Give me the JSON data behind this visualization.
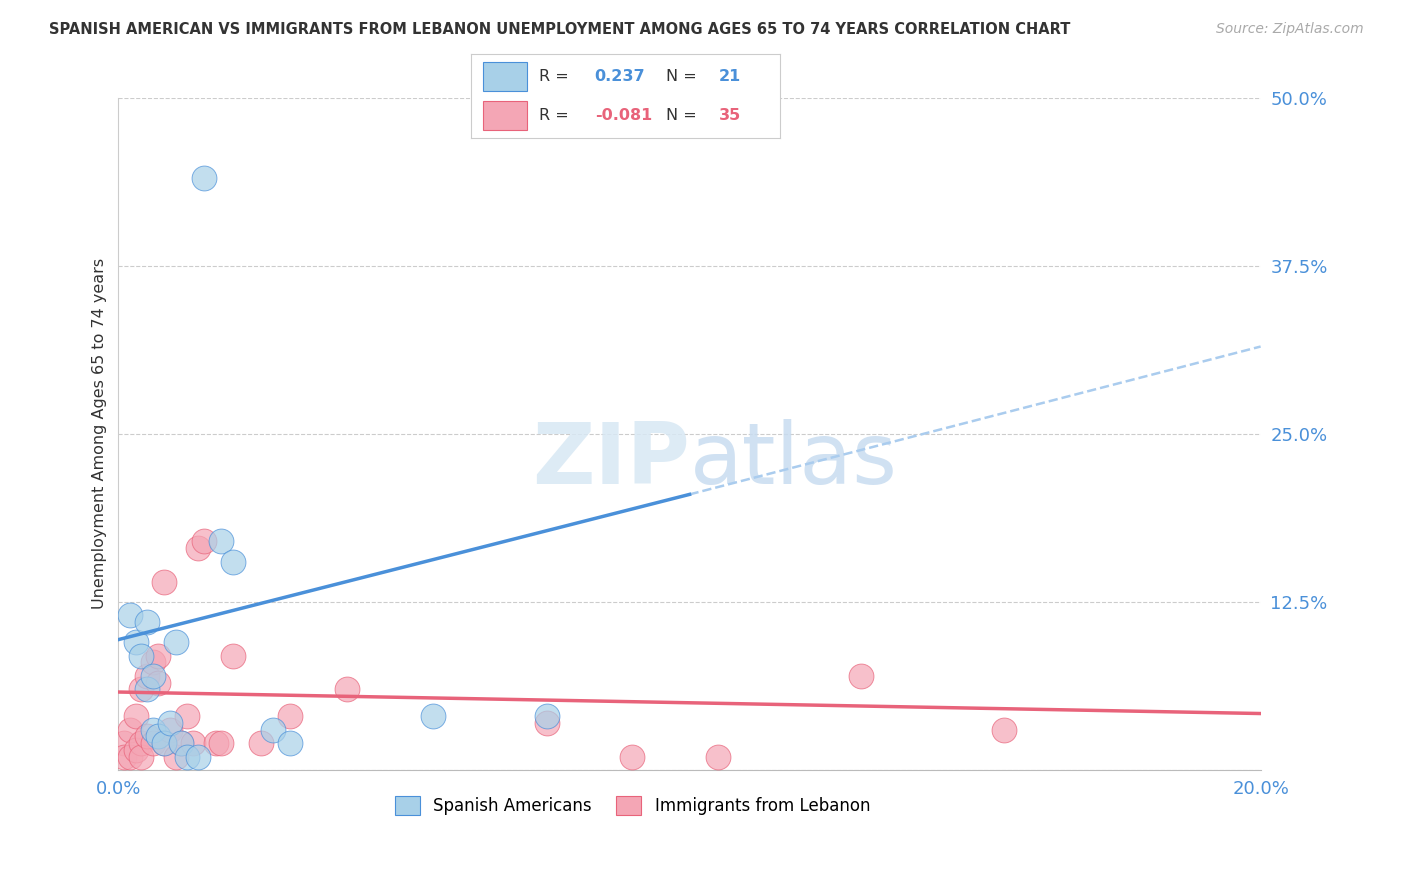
{
  "title": "SPANISH AMERICAN VS IMMIGRANTS FROM LEBANON UNEMPLOYMENT AMONG AGES 65 TO 74 YEARS CORRELATION CHART",
  "source": "Source: ZipAtlas.com",
  "ylabel": "Unemployment Among Ages 65 to 74 years",
  "xlim": [
    0.0,
    0.2
  ],
  "ylim": [
    0.0,
    0.5
  ],
  "yticks": [
    0.0,
    0.125,
    0.25,
    0.375,
    0.5
  ],
  "ytick_labels": [
    "",
    "12.5%",
    "25.0%",
    "37.5%",
    "50.0%"
  ],
  "xticks": [
    0.0,
    0.05,
    0.1,
    0.15,
    0.2
  ],
  "xtick_labels": [
    "0.0%",
    "",
    "",
    "",
    "20.0%"
  ],
  "series1_label": "Spanish Americans",
  "series1_color": "#A8D0E8",
  "series1_R": 0.237,
  "series1_N": 21,
  "series2_label": "Immigrants from Lebanon",
  "series2_color": "#F4A6B5",
  "series2_R": -0.081,
  "series2_N": 35,
  "blue_line_color": "#4A90D9",
  "pink_line_color": "#E8637A",
  "dashed_line_color": "#AACCEE",
  "watermark_color": "#D8E8F4",
  "background_color": "#FFFFFF",
  "series1_x": [
    0.002,
    0.003,
    0.004,
    0.005,
    0.005,
    0.006,
    0.006,
    0.007,
    0.008,
    0.009,
    0.01,
    0.011,
    0.012,
    0.014,
    0.015,
    0.018,
    0.02,
    0.027,
    0.03,
    0.055,
    0.075
  ],
  "series1_y": [
    0.115,
    0.095,
    0.085,
    0.06,
    0.11,
    0.07,
    0.03,
    0.025,
    0.02,
    0.035,
    0.095,
    0.02,
    0.01,
    0.01,
    0.44,
    0.17,
    0.155,
    0.03,
    0.02,
    0.04,
    0.04
  ],
  "series2_x": [
    0.001,
    0.001,
    0.002,
    0.002,
    0.003,
    0.003,
    0.004,
    0.004,
    0.004,
    0.005,
    0.005,
    0.006,
    0.006,
    0.007,
    0.007,
    0.008,
    0.008,
    0.009,
    0.01,
    0.011,
    0.012,
    0.013,
    0.014,
    0.015,
    0.017,
    0.018,
    0.02,
    0.025,
    0.03,
    0.04,
    0.075,
    0.09,
    0.105,
    0.13,
    0.155
  ],
  "series2_y": [
    0.02,
    0.01,
    0.03,
    0.01,
    0.04,
    0.015,
    0.06,
    0.02,
    0.01,
    0.07,
    0.025,
    0.08,
    0.02,
    0.085,
    0.065,
    0.14,
    0.02,
    0.03,
    0.01,
    0.02,
    0.04,
    0.02,
    0.165,
    0.17,
    0.02,
    0.02,
    0.085,
    0.02,
    0.04,
    0.06,
    0.035,
    0.01,
    0.01,
    0.07,
    0.03
  ],
  "blue_line_x0": 0.0,
  "blue_line_y0": 0.097,
  "blue_line_x1": 0.1,
  "blue_line_y1": 0.205,
  "dashed_line_x0": 0.1,
  "dashed_line_y0": 0.205,
  "dashed_line_x1": 0.2,
  "dashed_line_y1": 0.315,
  "pink_line_x0": 0.0,
  "pink_line_y0": 0.058,
  "pink_line_x1": 0.2,
  "pink_line_y1": 0.042
}
